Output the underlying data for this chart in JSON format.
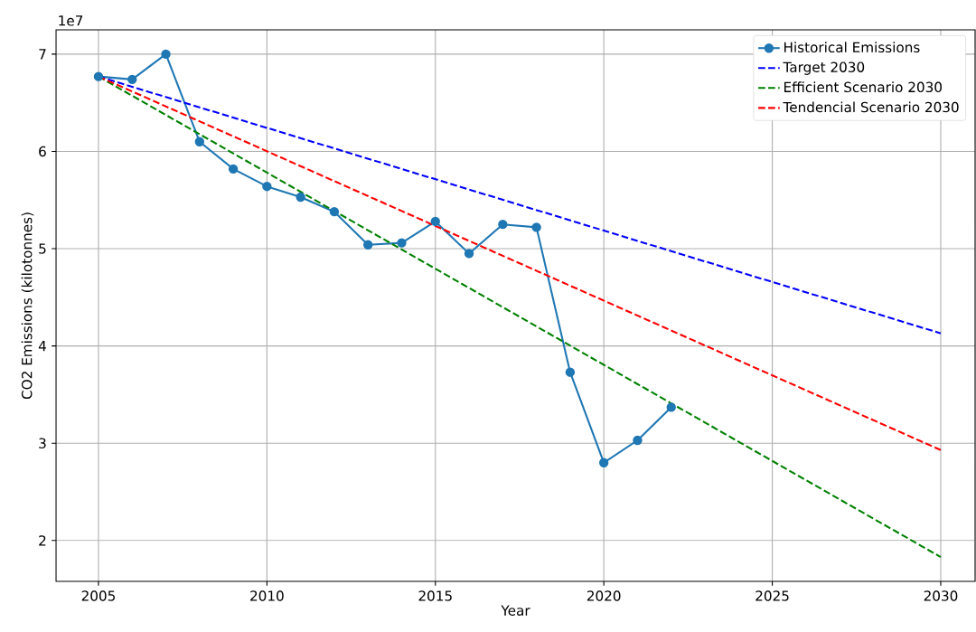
{
  "chart_data": {
    "type": "line",
    "xlabel": "Year",
    "ylabel": "CO2 Emissions (kilotonnes)",
    "annotations": [
      "1e7"
    ],
    "xlim": [
      2003.74,
      2031.02
    ],
    "ylim": [
      1.58,
      7.25
    ],
    "xticks": [
      2005,
      2010,
      2015,
      2020,
      2025,
      2030
    ],
    "yticks": [
      2,
      3,
      4,
      5,
      6,
      7
    ],
    "grid": true,
    "legend": "top right",
    "series": [
      {
        "name": "Historical Emissions",
        "color": "#1f77b4",
        "marker": "circle",
        "line_style": "solid",
        "x": [
          2005,
          2006,
          2007,
          2008,
          2009,
          2010,
          2011,
          2012,
          2013,
          2014,
          2015,
          2016,
          2017,
          2018,
          2019,
          2020,
          2021,
          2022
        ],
        "values": [
          6.77,
          6.74,
          7.0,
          6.1,
          5.82,
          5.64,
          5.53,
          5.38,
          5.04,
          5.06,
          5.28,
          4.95,
          5.25,
          5.22,
          3.73,
          2.8,
          3.03,
          3.37
        ]
      },
      {
        "name": "Target 2030",
        "color": "#0000ff",
        "marker": "none",
        "line_style": "dashed",
        "x": [
          2005,
          2030
        ],
        "values": [
          6.77,
          4.13
        ]
      },
      {
        "name": "Efficient Scenario 2030",
        "color": "#008000",
        "marker": "none",
        "line_style": "dashed",
        "x": [
          2005,
          2030
        ],
        "values": [
          6.77,
          1.83
        ]
      },
      {
        "name": "Tendencial Scenario 2030",
        "color": "#ff0000",
        "marker": "none",
        "line_style": "dashed",
        "x": [
          2005,
          2030
        ],
        "values": [
          6.77,
          2.93
        ]
      }
    ]
  }
}
